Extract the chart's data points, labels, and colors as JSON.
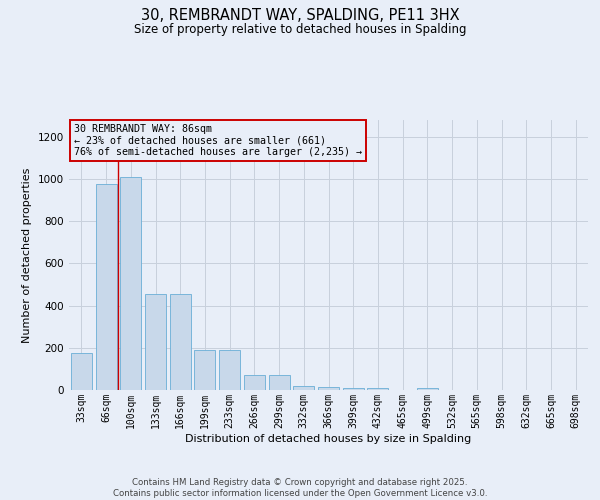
{
  "title_line1": "30, REMBRANDT WAY, SPALDING, PE11 3HX",
  "title_line2": "Size of property relative to detached houses in Spalding",
  "xlabel": "Distribution of detached houses by size in Spalding",
  "ylabel": "Number of detached properties",
  "categories": [
    "33sqm",
    "66sqm",
    "100sqm",
    "133sqm",
    "166sqm",
    "199sqm",
    "233sqm",
    "266sqm",
    "299sqm",
    "332sqm",
    "366sqm",
    "399sqm",
    "432sqm",
    "465sqm",
    "499sqm",
    "532sqm",
    "565sqm",
    "598sqm",
    "632sqm",
    "665sqm",
    "698sqm"
  ],
  "values": [
    175,
    975,
    1010,
    455,
    455,
    190,
    190,
    70,
    70,
    20,
    15,
    10,
    10,
    0,
    8,
    0,
    0,
    0,
    0,
    0,
    0
  ],
  "bar_color": "#c8d8ea",
  "bar_edge_color": "#6aaed6",
  "grid_color": "#c8d0dc",
  "background_color": "#e8eef8",
  "red_line_x": 1.5,
  "annotation_box_text": "30 REMBRANDT WAY: 86sqm\n← 23% of detached houses are smaller (661)\n76% of semi-detached houses are larger (2,235) →",
  "annotation_box_color": "#cc0000",
  "footer_line1": "Contains HM Land Registry data © Crown copyright and database right 2025.",
  "footer_line2": "Contains public sector information licensed under the Open Government Licence v3.0.",
  "ylim_max": 1280,
  "yticks": [
    0,
    200,
    400,
    600,
    800,
    1000,
    1200
  ]
}
